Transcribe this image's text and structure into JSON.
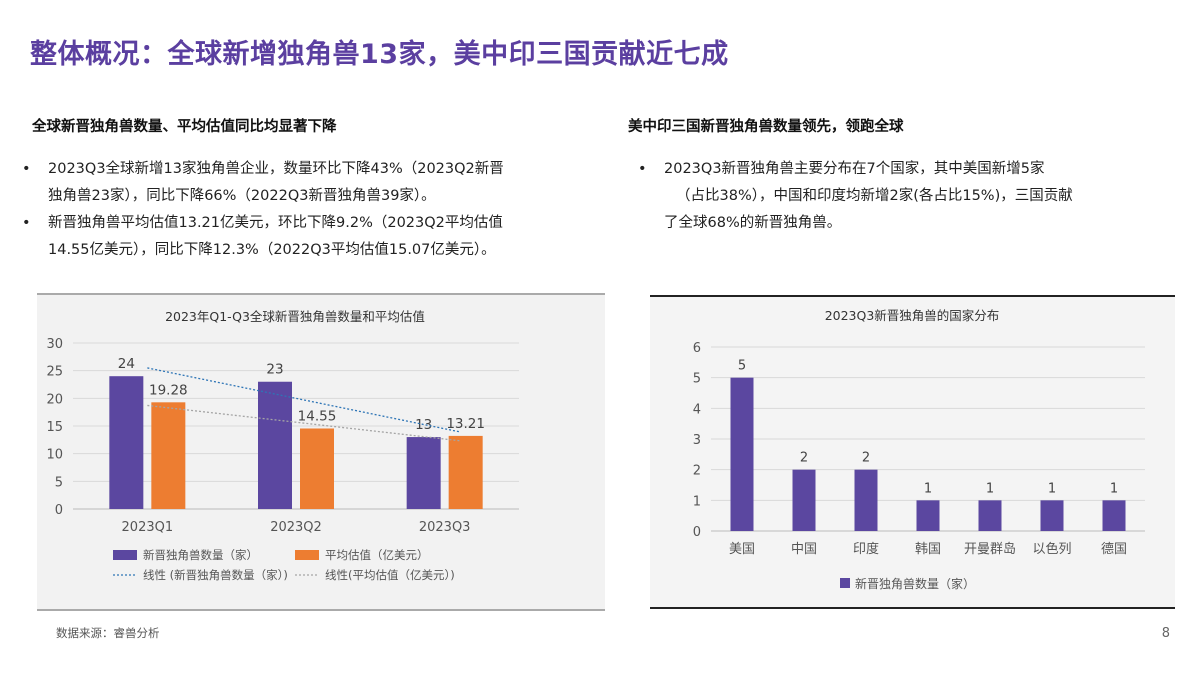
{
  "title": "整体概况：全球新增独角兽13家，美中印三国贡献近七成",
  "left": {
    "heading": "全球新晋独角兽数量、平均估值同比均显著下降",
    "bullets": [
      {
        "line1": "2023Q3全球新增13家独角兽企业，数量环比下降43%（2023Q2新晋",
        "line2": "独角兽23家），同比下降66%（2022Q3新晋独角兽39家）。"
      },
      {
        "line1": "新晋独角兽平均估值13.21亿美元，环比下降9.2%（2023Q2平均估值",
        "line2": "14.55亿美元），同比下降12.3%（2022Q3平均估值15.07亿美元）。"
      }
    ]
  },
  "right": {
    "heading": "美中印三国新晋独角兽数量领先，领跑全球",
    "bullets": [
      {
        "line1": "2023Q3新晋独角兽主要分布在7个国家，其中美国新增5家",
        "line2": "（占比38%），中国和印度均新增2家(各占比15%)，三国贡献",
        "line3": "了全球68%的新晋独角兽。"
      }
    ]
  },
  "chart_data": [
    {
      "type": "bar",
      "title": "2023年Q1-Q3全球新晋独角兽数量和平均估值",
      "categories": [
        "2023Q1",
        "2023Q2",
        "2023Q3"
      ],
      "series": [
        {
          "name": "新晋独角兽数量（家）",
          "values": [
            24,
            23,
            13
          ],
          "labels": [
            "24",
            "23",
            "13"
          ],
          "color": "#5b47a0"
        },
        {
          "name": "平均估值（亿美元）",
          "values": [
            19.28,
            14.55,
            13.21
          ],
          "labels": [
            "19.28",
            "14.55",
            "13.21"
          ],
          "color": "#ed7d31"
        }
      ],
      "trendlines": [
        {
          "name": "线性 (新晋独角兽数量（家）)",
          "type": "linear",
          "of_series": 0,
          "color": "#2e75b6"
        },
        {
          "name": "线性(平均估值（亿美元）)",
          "type": "linear",
          "of_series": 1,
          "color": "#a5a5a5"
        }
      ],
      "yticks": [
        "0",
        "5",
        "10",
        "15",
        "20",
        "25",
        "30"
      ],
      "ylim": [
        0,
        30
      ],
      "grid": true,
      "legend": "bottom"
    },
    {
      "type": "bar",
      "title": "2023Q3新晋独角兽的国家分布",
      "categories": [
        "美国",
        "中国",
        "印度",
        "韩国",
        "开曼群岛",
        "以色列",
        "德国"
      ],
      "series": [
        {
          "name": "新晋独角兽数量（家）",
          "values": [
            5,
            2,
            2,
            1,
            1,
            1,
            1
          ],
          "labels": [
            "5",
            "2",
            "2",
            "1",
            "1",
            "1",
            "1"
          ],
          "color": "#5b47a0"
        }
      ],
      "yticks": [
        "0",
        "1",
        "2",
        "3",
        "4",
        "5",
        "6"
      ],
      "ylim": [
        0,
        6
      ],
      "grid": true,
      "legend": "bottom"
    }
  ],
  "footer": {
    "source": "数据来源：睿兽分析",
    "page": "8"
  }
}
